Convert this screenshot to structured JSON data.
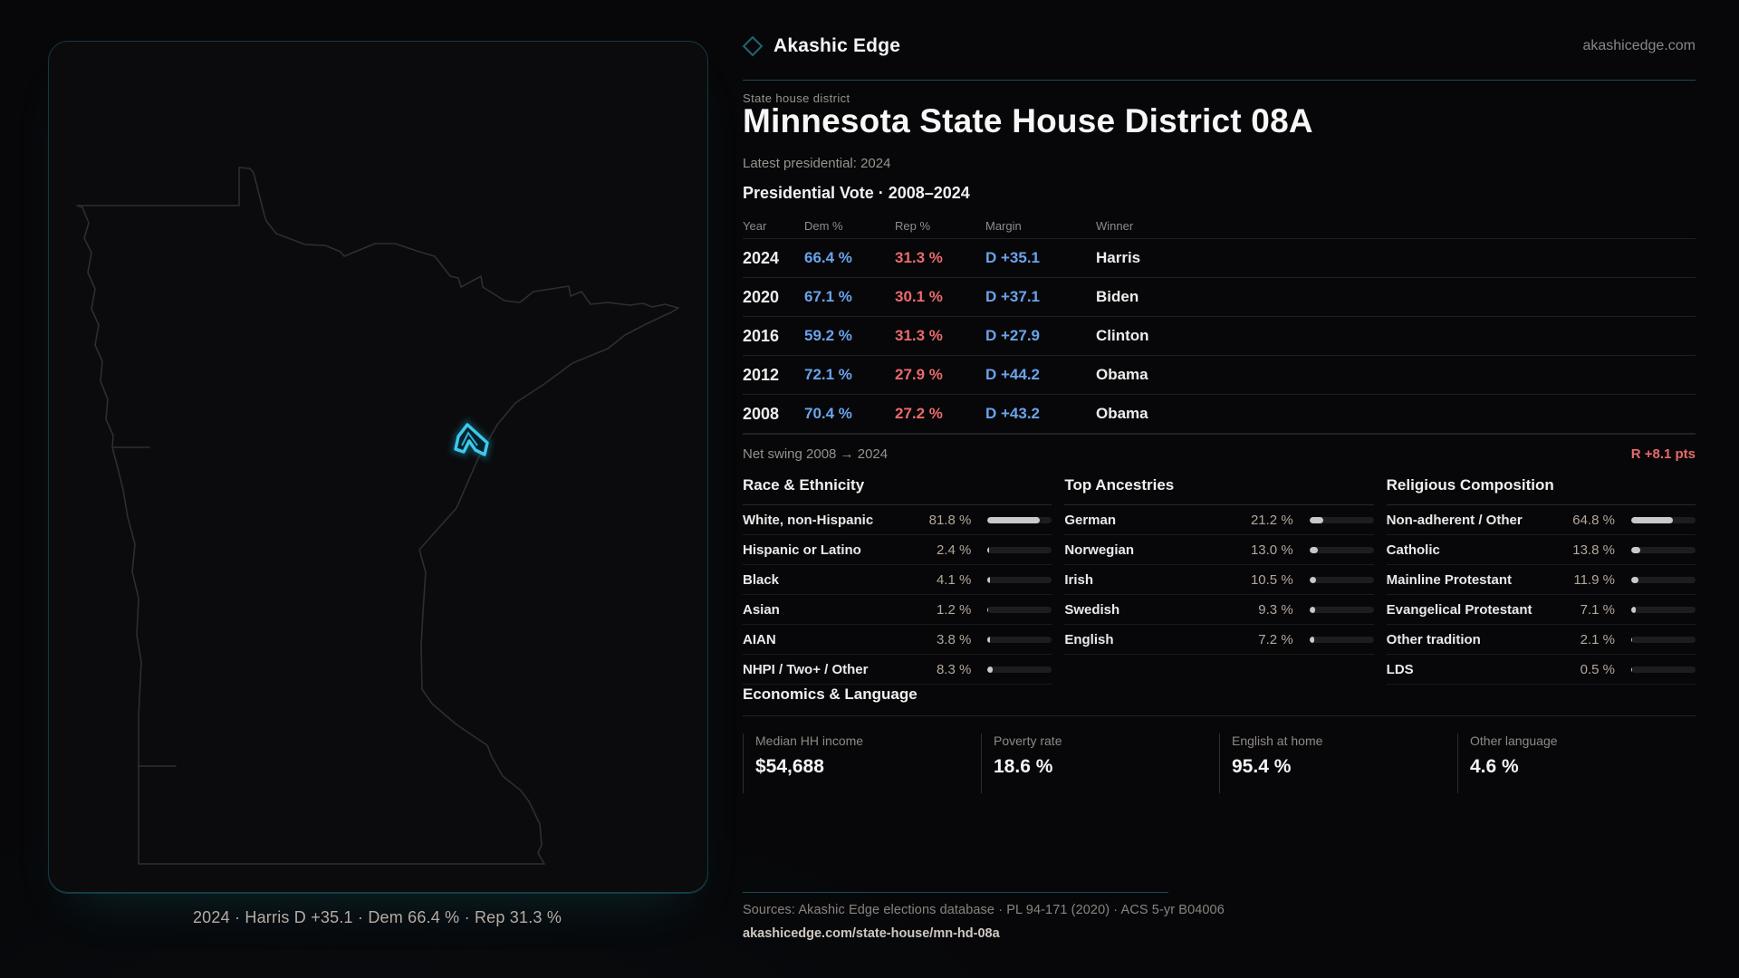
{
  "brand": {
    "name": "Akashic Edge",
    "domain": "akashicedge.com"
  },
  "header": {
    "eyebrow": "State house district",
    "title": "Minnesota State House District 08A",
    "subtitle": "Latest presidential: 2024"
  },
  "vote_table": {
    "title": "Presidential Vote · 2008–2024",
    "columns": [
      "Year",
      "Dem %",
      "Rep %",
      "Margin",
      "Winner"
    ],
    "rows": [
      {
        "year": "2024",
        "dem": "66.4 %",
        "rep": "31.3 %",
        "margin": "D +35.1",
        "winner": "Harris"
      },
      {
        "year": "2020",
        "dem": "67.1 %",
        "rep": "30.1 %",
        "margin": "D +37.1",
        "winner": "Biden"
      },
      {
        "year": "2016",
        "dem": "59.2 %",
        "rep": "31.3 %",
        "margin": "D +27.9",
        "winner": "Clinton"
      },
      {
        "year": "2012",
        "dem": "72.1 %",
        "rep": "27.9 %",
        "margin": "D +44.2",
        "winner": "Obama"
      },
      {
        "year": "2008",
        "dem": "70.4 %",
        "rep": "27.2 %",
        "margin": "D +43.2",
        "winner": "Obama"
      }
    ],
    "net_swing_label": "Net swing 2008 → 2024",
    "net_swing_value": "R +8.1 pts"
  },
  "demographics": [
    {
      "title": "Race & Ethnicity",
      "rows": [
        {
          "label": "White, non-Hispanic",
          "value": "81.8 %",
          "pct": 81.8
        },
        {
          "label": "Hispanic or Latino",
          "value": "2.4 %",
          "pct": 2.4
        },
        {
          "label": "Black",
          "value": "4.1 %",
          "pct": 4.1
        },
        {
          "label": "Asian",
          "value": "1.2 %",
          "pct": 1.2
        },
        {
          "label": "AIAN",
          "value": "3.8 %",
          "pct": 3.8
        },
        {
          "label": "NHPI / Two+ / Other",
          "value": "8.3 %",
          "pct": 8.3
        }
      ]
    },
    {
      "title": "Top Ancestries",
      "rows": [
        {
          "label": "German",
          "value": "21.2 %",
          "pct": 21.2
        },
        {
          "label": "Norwegian",
          "value": "13.0 %",
          "pct": 13.0
        },
        {
          "label": "Irish",
          "value": "10.5 %",
          "pct": 10.5
        },
        {
          "label": "Swedish",
          "value": "9.3 %",
          "pct": 9.3
        },
        {
          "label": "English",
          "value": "7.2 %",
          "pct": 7.2
        }
      ]
    },
    {
      "title": "Religious Composition",
      "rows": [
        {
          "label": "Non-adherent / Other",
          "value": "64.8 %",
          "pct": 64.8
        },
        {
          "label": "Catholic",
          "value": "13.8 %",
          "pct": 13.8
        },
        {
          "label": "Mainline Protestant",
          "value": "11.9 %",
          "pct": 11.9
        },
        {
          "label": "Evangelical Protestant",
          "value": "7.1 %",
          "pct": 7.1
        },
        {
          "label": "Other tradition",
          "value": "2.1 %",
          "pct": 2.1
        },
        {
          "label": "LDS",
          "value": "0.5 %",
          "pct": 0.5
        }
      ]
    }
  ],
  "economics": {
    "title": "Economics & Language",
    "stats": [
      {
        "label": "Median HH income",
        "value": "$54,688"
      },
      {
        "label": "Poverty rate",
        "value": "18.6 %"
      },
      {
        "label": "English at home",
        "value": "95.4 %"
      },
      {
        "label": "Other language",
        "value": "4.6 %"
      }
    ]
  },
  "map": {
    "caption": "2024 · Harris D +35.1 · Dem 66.4 % · Rep 31.3 %"
  },
  "footer": {
    "sources": "Sources: Akashic Edge elections database · PL 94-171 (2020) · ACS 5-yr B04006",
    "permalink": "akashicedge.com/state-house/mn-hd-08a"
  },
  "colors": {
    "dem_blue": "#6aa3ea",
    "rep_red": "#eb6a6c",
    "swing_red": "#e96a6a",
    "accent_cyan": "#3cc9ec",
    "teal_divider": "#1a4c55"
  }
}
